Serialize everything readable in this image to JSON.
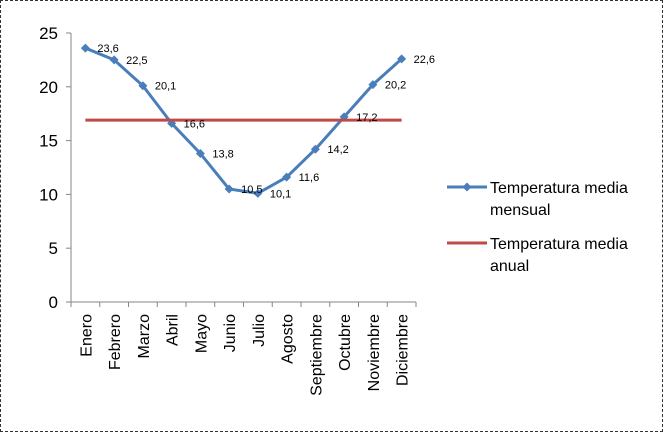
{
  "chart_data": {
    "type": "line",
    "title": "",
    "xlabel": "",
    "ylabel": "",
    "ylim": [
      0,
      25
    ],
    "yticks": [
      0,
      5,
      10,
      15,
      20,
      25
    ],
    "grid": false,
    "legend_position": "right",
    "categories": [
      "Enero",
      "Febrero",
      "Marzo",
      "Abril",
      "Mayo",
      "Junio",
      "Julio",
      "Agosto",
      "Septiembre",
      "Octubre",
      "Noviembre",
      "Diciembre"
    ],
    "data_labels": [
      "23,6",
      "22,5",
      "20,1",
      "16,6",
      "13,8",
      "10,5",
      "10,1",
      "11,6",
      "14,2",
      "17,2",
      "20,2",
      "22,6"
    ],
    "series": [
      {
        "name": "Temperatura media mensual",
        "legend_lines": [
          "Temperatura media",
          "mensual"
        ],
        "color": "#4a7ebb",
        "marker": "diamond",
        "values": [
          23.6,
          22.5,
          20.1,
          16.6,
          13.8,
          10.5,
          10.1,
          11.6,
          14.2,
          17.2,
          20.2,
          22.6
        ]
      },
      {
        "name": "Temperatura media anual",
        "legend_lines": [
          "Temperatura media",
          "anual"
        ],
        "color": "#be4b48",
        "marker": "none",
        "values": [
          16.9,
          16.9,
          16.9,
          16.9,
          16.9,
          16.9,
          16.9,
          16.9,
          16.9,
          16.9,
          16.9,
          16.9
        ]
      }
    ]
  }
}
